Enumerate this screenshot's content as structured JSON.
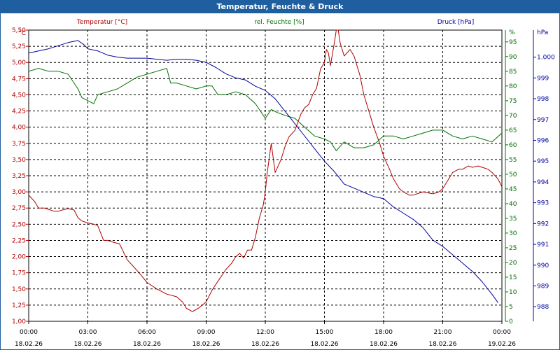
{
  "window": {
    "title": "Temperatur, Feuchte & Druck"
  },
  "chart_data": {
    "type": "line",
    "title": "Temperatur, Feuchte & Druck",
    "grid": true,
    "colors": {
      "temperature": "#b00000",
      "humidity": "#007000",
      "pressure": "#0000a0",
      "grid": "#000000"
    },
    "xlim": [
      0,
      24
    ],
    "x_ticks": [
      {
        "time": "00:00",
        "date": "18.02.26"
      },
      {
        "time": "03:00",
        "date": "18.02.26"
      },
      {
        "time": "06:00",
        "date": "18.02.26"
      },
      {
        "time": "09:00",
        "date": "18.02.26"
      },
      {
        "time": "12:00",
        "date": "18.02.26"
      },
      {
        "time": "15:00",
        "date": "18.02.26"
      },
      {
        "time": "18:00",
        "date": "18.02.26"
      },
      {
        "time": "21:00",
        "date": "18.02.26"
      },
      {
        "time": "00:00",
        "date": "19.02.26"
      }
    ],
    "axes": {
      "left": {
        "unit": "°C",
        "ylim": [
          1.0,
          5.5
        ],
        "ticks": [
          "1,00",
          "1,25",
          "1,50",
          "1,75",
          "2,00",
          "2,25",
          "2,50",
          "2,75",
          "3,00",
          "3,25",
          "3,50",
          "3,75",
          "4,00",
          "4,25",
          "4,50",
          "4,75",
          "5,00",
          "5,25",
          "5,50"
        ]
      },
      "middle": {
        "unit": "%",
        "ylim": [
          0,
          99
        ],
        "ticks": [
          "0",
          "5",
          "10",
          "15",
          "20",
          "25",
          "30",
          "35",
          "40",
          "45",
          "50",
          "55",
          "60",
          "65",
          "70",
          "75",
          "80",
          "85",
          "90",
          "95",
          "%"
        ]
      },
      "right": {
        "unit": "hPa",
        "ylim": [
          987.3,
          1001.3
        ],
        "ticks": [
          "988",
          "989",
          "990",
          "991",
          "992",
          "993",
          "994",
          "995",
          "996",
          "997",
          "998",
          "999",
          "1.000"
        ]
      }
    },
    "series": [
      {
        "name": "Temperatur [°C]",
        "axis": "left",
        "color": "#b00000",
        "x": [
          0,
          0.3,
          0.5,
          0.8,
          1.0,
          1.3,
          1.5,
          1.7,
          2.0,
          2.3,
          2.5,
          2.7,
          3.0,
          3.3,
          3.5,
          3.8,
          4.0,
          4.3,
          4.6,
          5.0,
          5.3,
          5.6,
          6.0,
          6.5,
          7.0,
          7.5,
          7.8,
          8.0,
          8.3,
          8.6,
          9.0,
          9.3,
          9.6,
          10.0,
          10.3,
          10.5,
          10.7,
          10.9,
          11.1,
          11.3,
          11.5,
          11.7,
          11.9,
          12.0,
          12.1,
          12.3,
          12.5,
          12.8,
          13.0,
          13.2,
          13.5,
          13.8,
          14.0,
          14.2,
          14.4,
          14.6,
          14.8,
          15.0,
          15.1,
          15.2,
          15.3,
          15.5,
          15.6,
          15.7,
          15.8,
          16.0,
          16.3,
          16.5,
          16.8,
          17.0,
          17.3,
          17.5,
          17.8,
          18.0,
          18.3,
          18.5,
          18.8,
          19.0,
          19.3,
          19.5,
          20.0,
          20.5,
          20.8,
          21.0,
          21.3,
          21.5,
          21.8,
          22.0,
          22.3,
          22.5,
          22.8,
          23.0,
          23.3,
          23.5,
          23.8,
          24.0
        ],
        "values": [
          2.95,
          2.85,
          2.75,
          2.75,
          2.73,
          2.7,
          2.7,
          2.72,
          2.74,
          2.72,
          2.6,
          2.55,
          2.52,
          2.5,
          2.48,
          2.25,
          2.25,
          2.22,
          2.2,
          1.95,
          1.85,
          1.75,
          1.6,
          1.5,
          1.42,
          1.38,
          1.3,
          1.2,
          1.15,
          1.2,
          1.3,
          1.48,
          1.62,
          1.8,
          1.9,
          2.0,
          2.05,
          1.98,
          2.1,
          2.1,
          2.3,
          2.6,
          2.8,
          3.0,
          3.3,
          3.75,
          3.3,
          3.5,
          3.7,
          3.85,
          3.95,
          4.2,
          4.3,
          4.35,
          4.5,
          4.6,
          4.9,
          5.0,
          5.2,
          5.15,
          4.95,
          5.3,
          5.5,
          5.5,
          5.3,
          5.1,
          5.2,
          5.1,
          4.8,
          4.5,
          4.2,
          4.0,
          3.75,
          3.55,
          3.35,
          3.2,
          3.05,
          3.0,
          2.95,
          2.95,
          3.0,
          2.97,
          3.0,
          3.05,
          3.2,
          3.3,
          3.35,
          3.35,
          3.4,
          3.38,
          3.4,
          3.38,
          3.35,
          3.3,
          3.2,
          3.08
        ]
      },
      {
        "name": "rel. Feuchte [%]",
        "axis": "middle",
        "color": "#007000",
        "x": [
          0,
          0.5,
          1.0,
          1.5,
          2.0,
          2.3,
          2.5,
          2.7,
          3.0,
          3.3,
          3.5,
          4.0,
          4.5,
          5.0,
          5.5,
          6.0,
          6.5,
          7.0,
          7.2,
          7.5,
          8.0,
          8.5,
          9.0,
          9.3,
          9.6,
          10.0,
          10.5,
          11.0,
          11.5,
          12.0,
          12.3,
          12.6,
          13.0,
          13.5,
          14.0,
          14.5,
          15.0,
          15.3,
          15.6,
          16.0,
          16.5,
          17.0,
          17.5,
          18.0,
          18.5,
          19.0,
          19.5,
          20.0,
          20.5,
          21.0,
          21.5,
          22.0,
          22.5,
          23.0,
          23.5,
          24.0
        ],
        "values": [
          85,
          86,
          85,
          85,
          84,
          81,
          79,
          76,
          75,
          74,
          77,
          78,
          79,
          81,
          83,
          84,
          85,
          86,
          81,
          81,
          80,
          79,
          80,
          80,
          77,
          77,
          78,
          77,
          74,
          69,
          72,
          71,
          70,
          69,
          66,
          63,
          62,
          61,
          58,
          61,
          59,
          59,
          60,
          63,
          63,
          62,
          63,
          64,
          65,
          65,
          63,
          62,
          63,
          62,
          61,
          64
        ]
      },
      {
        "name": "Druck [hPa]",
        "axis": "right",
        "color": "#0000a0",
        "x": [
          0,
          0.5,
          1.0,
          1.5,
          2.0,
          2.5,
          2.8,
          3.0,
          3.5,
          4.0,
          4.5,
          5.0,
          5.5,
          6.0,
          6.5,
          7.0,
          7.5,
          8.0,
          8.5,
          9.0,
          9.5,
          10.0,
          10.5,
          11.0,
          11.5,
          12.0,
          12.5,
          13.0,
          13.5,
          14.0,
          14.5,
          15.0,
          15.5,
          16.0,
          16.5,
          17.0,
          17.5,
          18.0,
          18.5,
          19.0,
          19.5,
          20.0,
          20.5,
          21.0,
          21.5,
          22.0,
          22.5,
          23.0,
          23.5,
          23.8
        ],
        "values": [
          1000.2,
          1000.3,
          1000.4,
          1000.55,
          1000.7,
          1000.8,
          1000.6,
          1000.4,
          1000.3,
          1000.1,
          1000.0,
          999.95,
          999.95,
          999.95,
          999.9,
          999.85,
          999.9,
          999.9,
          999.85,
          999.75,
          999.5,
          999.2,
          999.0,
          998.9,
          998.6,
          998.4,
          998.0,
          997.4,
          996.8,
          996.2,
          995.6,
          995.0,
          994.5,
          993.9,
          993.7,
          993.5,
          993.3,
          993.2,
          992.8,
          992.5,
          992.2,
          991.8,
          991.2,
          990.9,
          990.5,
          990.1,
          989.7,
          989.2,
          988.6,
          988.2
        ]
      }
    ]
  }
}
